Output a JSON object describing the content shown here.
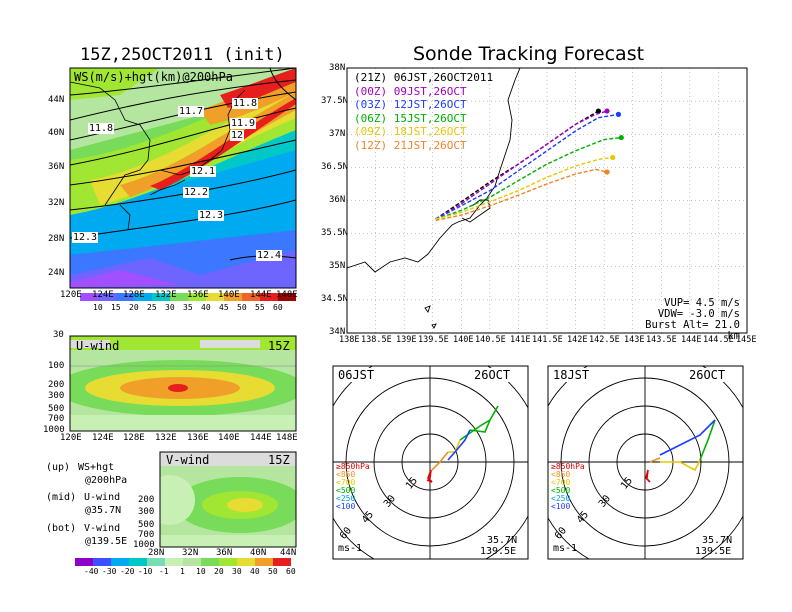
{
  "left_title": "15Z,25OCT2011 (init)",
  "right_title": "Sonde Tracking Forecast",
  "map_label": "WS(m/s)+hgt(km)@200hPa",
  "map_lat_ticks": [
    "44N",
    "40N",
    "36N",
    "32N",
    "28N",
    "24N"
  ],
  "map_lon_ticks": [
    "120E",
    "124E",
    "128E",
    "132E",
    "136E",
    "140E",
    "144E",
    "148E"
  ],
  "hgt_labels": [
    "11.7",
    "11.8",
    "11.8",
    "11.9",
    "12",
    "12.1",
    "12.2",
    "12.3",
    "12.3",
    "12.4"
  ],
  "ws_colorbar": [
    "10",
    "15",
    "20",
    "25",
    "30",
    "35",
    "40",
    "45",
    "50",
    "55",
    "60"
  ],
  "uwind": {
    "label": "U-wind",
    "time": "15Z",
    "p_ticks": [
      "30",
      "100",
      "200",
      "300",
      "500",
      "700",
      "1000"
    ],
    "lon_ticks": [
      "120E",
      "124E",
      "128E",
      "132E",
      "136E",
      "140E",
      "144E",
      "148E"
    ]
  },
  "vwind": {
    "label": "V-wind",
    "time": "15Z",
    "p_ticks": [
      "200",
      "300",
      "500",
      "700",
      "1000"
    ],
    "lat_ticks": [
      "28N",
      "32N",
      "36N",
      "40N",
      "44N"
    ]
  },
  "legend_notes": [
    {
      "tag": "(up)",
      "l1": "WS+hgt",
      "l2": "@200hPa"
    },
    {
      "tag": "(mid)",
      "l1": "U-wind",
      "l2": "@35.7N"
    },
    {
      "tag": "(bot)",
      "l1": "V-wind",
      "l2": "@139.5E"
    }
  ],
  "uv_colorbar": [
    "-40",
    "-30",
    "-20",
    "-10",
    "-1",
    "1",
    "10",
    "20",
    "30",
    "40",
    "50",
    "60"
  ],
  "track_lat_ticks": [
    "38N",
    "37.5N",
    "37N",
    "36.5N",
    "36N",
    "35.5N",
    "35N",
    "34.5N",
    "34N"
  ],
  "track_lon_ticks": [
    "138E",
    "138.5E",
    "139E",
    "139.5E",
    "140E",
    "140.5E",
    "141E",
    "141.5E",
    "142E",
    "142.5E",
    "143E",
    "143.5E",
    "144E",
    "144.5E",
    "145E"
  ],
  "track_legend": [
    {
      "utc": "(21Z)",
      "jst": "06JST,26OCT2011",
      "color": "#000000"
    },
    {
      "utc": "(00Z)",
      "jst": "09JST,26OCT",
      "color": "#a000c0"
    },
    {
      "utc": "(03Z)",
      "jst": "12JST,26OCT",
      "color": "#1e3cff"
    },
    {
      "utc": "(06Z)",
      "jst": "15JST,26OCT",
      "color": "#00b000"
    },
    {
      "utc": "(09Z)",
      "jst": "18JST,26OCT",
      "color": "#e6c800"
    },
    {
      "utc": "(12Z)",
      "jst": "21JST,26OCT",
      "color": "#f08228"
    }
  ],
  "track_params": [
    "VUP= 4.5 m/s",
    "VDW= -3.0 m/s",
    "Burst Alt= 21.0 km"
  ],
  "chart_data": {
    "type": "line",
    "title": "Sonde Tracking Forecast",
    "xlim": [
      138,
      145
    ],
    "ylim": [
      34,
      38
    ],
    "series": [
      {
        "name": "06JST,26OCT2011",
        "color": "#000000",
        "points": [
          [
            139.55,
            35.72
          ],
          [
            140.0,
            35.98
          ],
          [
            140.5,
            36.28
          ],
          [
            141.0,
            36.55
          ],
          [
            141.5,
            36.85
          ],
          [
            142.0,
            37.15
          ],
          [
            142.3,
            37.3
          ],
          [
            142.4,
            37.35
          ]
        ]
      },
      {
        "name": "09JST,26OCT",
        "color": "#a000c0",
        "points": [
          [
            139.55,
            35.72
          ],
          [
            140.0,
            35.95
          ],
          [
            140.5,
            36.25
          ],
          [
            141.0,
            36.55
          ],
          [
            141.5,
            36.85
          ],
          [
            142.0,
            37.15
          ],
          [
            142.35,
            37.3
          ],
          [
            142.55,
            37.35
          ]
        ]
      },
      {
        "name": "12JST,26OCT",
        "color": "#1e3cff",
        "points": [
          [
            139.55,
            35.72
          ],
          [
            140.0,
            35.92
          ],
          [
            140.5,
            36.15
          ],
          [
            141.0,
            36.45
          ],
          [
            141.5,
            36.75
          ],
          [
            142.0,
            37.05
          ],
          [
            142.4,
            37.25
          ],
          [
            142.75,
            37.3
          ]
        ]
      },
      {
        "name": "15JST,26OCT",
        "color": "#00b000",
        "points": [
          [
            139.55,
            35.72
          ],
          [
            140.0,
            35.85
          ],
          [
            140.5,
            36.05
          ],
          [
            141.0,
            36.3
          ],
          [
            141.5,
            36.55
          ],
          [
            142.0,
            36.75
          ],
          [
            142.5,
            36.92
          ],
          [
            142.8,
            36.95
          ]
        ]
      },
      {
        "name": "18JST,26OCT",
        "color": "#e6c800",
        "points": [
          [
            139.55,
            35.72
          ],
          [
            140.0,
            35.82
          ],
          [
            140.5,
            35.98
          ],
          [
            141.0,
            36.15
          ],
          [
            141.5,
            36.35
          ],
          [
            142.0,
            36.52
          ],
          [
            142.4,
            36.62
          ],
          [
            142.65,
            36.65
          ]
        ]
      },
      {
        "name": "21JST,26OCT",
        "color": "#f08228",
        "points": [
          [
            139.55,
            35.7
          ],
          [
            140.0,
            35.78
          ],
          [
            140.5,
            35.92
          ],
          [
            141.0,
            36.08
          ],
          [
            141.5,
            36.25
          ],
          [
            142.0,
            36.4
          ],
          [
            142.35,
            36.47
          ],
          [
            142.55,
            36.43
          ]
        ]
      }
    ],
    "params": {
      "vup": 4.5,
      "vdw": -3.0,
      "burst_alt_km": 21.0
    },
    "hodographs": [
      {
        "time": "06JST",
        "date": "26OCT",
        "lat": "35.7N",
        "lon": "139.5E",
        "unit": "ms-1",
        "ring_labels": [
          "15",
          "30",
          "45",
          "60"
        ]
      },
      {
        "time": "18JST",
        "date": "26OCT",
        "lat": "35.7N",
        "lon": "139.5E",
        "unit": "ms-1",
        "ring_labels": [
          "15",
          "30",
          "45",
          "60"
        ]
      }
    ],
    "hodo_legend": [
      {
        "text": "≥850hPa",
        "color": "#e00000"
      },
      {
        "text": "<850",
        "color": "#f09020"
      },
      {
        "text": "<700",
        "color": "#e6c800"
      },
      {
        "text": "<500",
        "color": "#00b000"
      },
      {
        "text": "<250",
        "color": "#00a0e6"
      },
      {
        "text": "<100",
        "color": "#1e3cff"
      }
    ]
  }
}
